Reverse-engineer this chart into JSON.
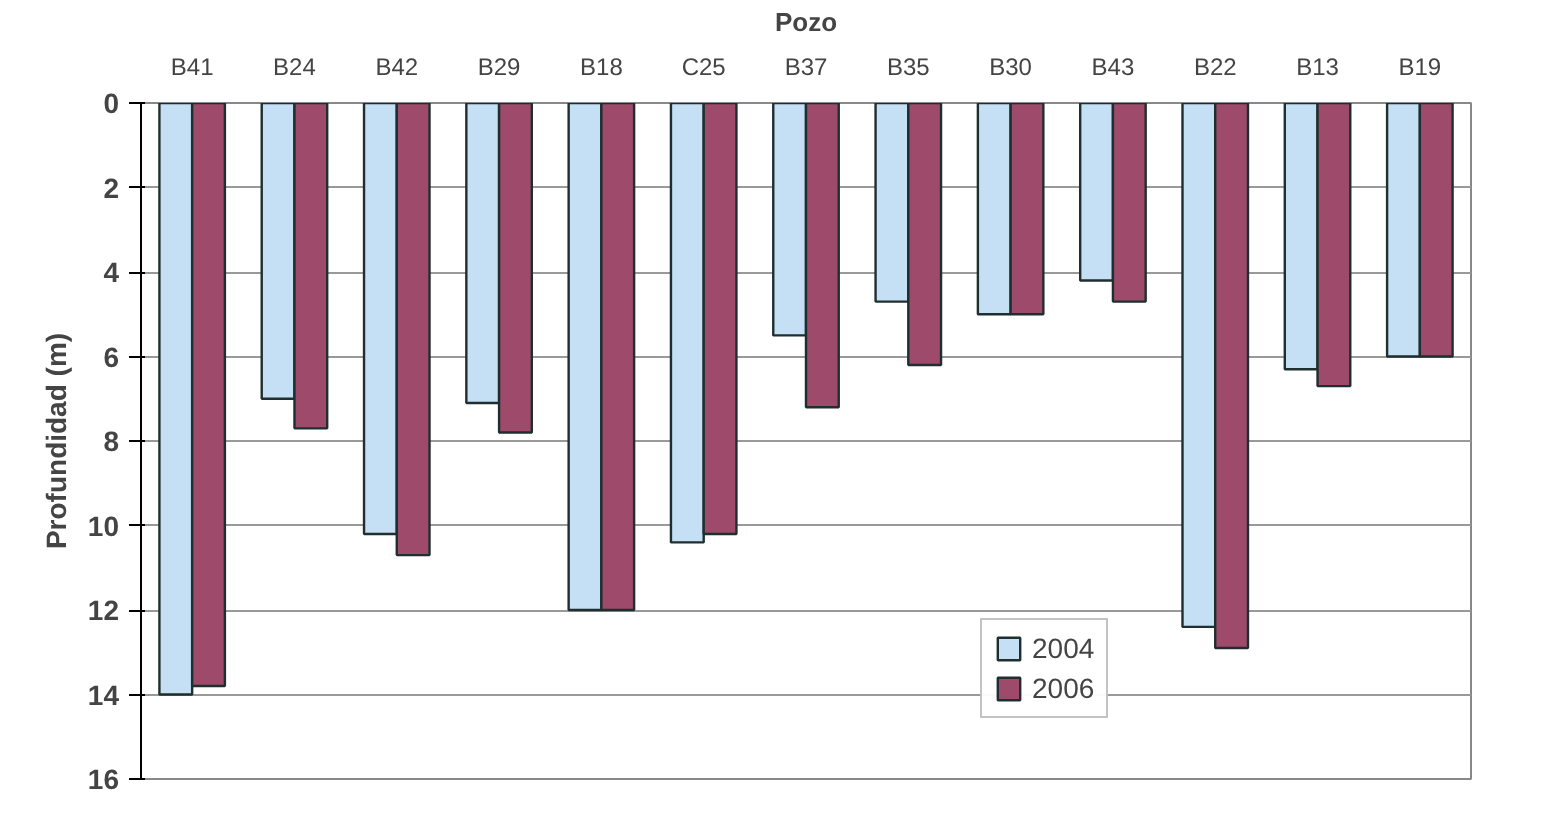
{
  "chart_data": {
    "type": "bar",
    "xlabel": "Pozo",
    "ylabel": "Profundidad (m)",
    "categories": [
      "B41",
      "B24",
      "B42",
      "B29",
      "B18",
      "C25",
      "B37",
      "B35",
      "B30",
      "B43",
      "B22",
      "B13",
      "B19"
    ],
    "series": [
      {
        "name": "2004",
        "color": "#c5dff5",
        "values": [
          14,
          7.0,
          10.2,
          7.1,
          12,
          10.4,
          5.5,
          4.7,
          5.0,
          4.2,
          12.4,
          6.3,
          6.0
        ]
      },
      {
        "name": "2006",
        "color": "#9e4a6a",
        "values": [
          13.8,
          7.7,
          10.7,
          7.8,
          12,
          10.2,
          7.2,
          6.2,
          5.0,
          4.7,
          12.9,
          6.7,
          6.0
        ]
      }
    ],
    "ylim": [
      16,
      0
    ],
    "yticks": [
      0,
      2,
      4,
      6,
      8,
      10,
      12,
      14,
      16
    ],
    "grid": "y",
    "legend": "bottom"
  }
}
